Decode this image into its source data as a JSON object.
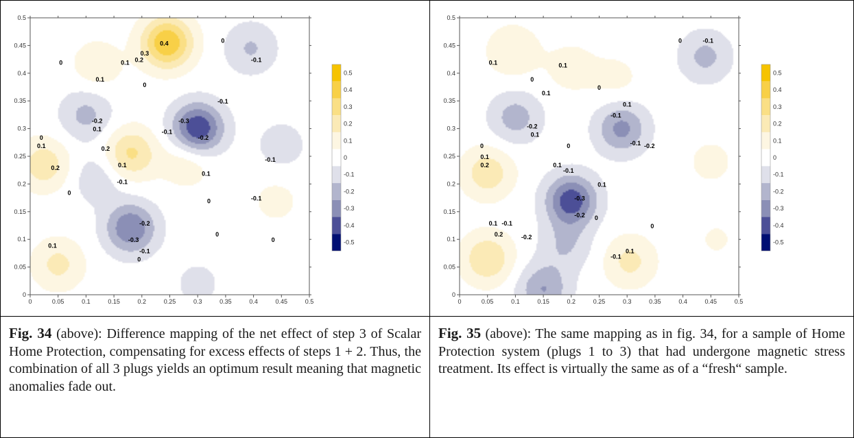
{
  "chart_data": [
    {
      "type": "heatmap",
      "subtype": "filled-contour",
      "x_ticks": [
        "0",
        "0.05",
        "0.1",
        "0.15",
        "0.2",
        "0.25",
        "0.3",
        "0.35",
        "0.4",
        "0.45",
        "0.5"
      ],
      "y_ticks": [
        "0",
        "0.05",
        "0.1",
        "0.15",
        "0.2",
        "0.25",
        "0.3",
        "0.35",
        "0.4",
        "0.45",
        "0.5"
      ],
      "xlim": [
        0,
        0.5
      ],
      "ylim": [
        0,
        0.5
      ],
      "levels": [
        -0.5,
        -0.4,
        -0.3,
        -0.2,
        -0.1,
        0,
        0.1,
        0.2,
        0.3,
        0.4,
        0.5
      ],
      "colorbar_labels": [
        "0.5",
        "0.4",
        "0.3",
        "0.2",
        "0.1",
        "0",
        "-0.1",
        "-0.2",
        "-0.3",
        "-0.4",
        "-0.5"
      ],
      "features": [
        {
          "x": 0.245,
          "y": 0.455,
          "value": 0.45
        },
        {
          "x": 0.12,
          "y": 0.415,
          "value": 0.12
        },
        {
          "x": 0.395,
          "y": 0.445,
          "value": -0.16
        },
        {
          "x": 0.1,
          "y": 0.325,
          "value": -0.18
        },
        {
          "x": 0.3,
          "y": 0.3,
          "value": -0.45
        },
        {
          "x": 0.18,
          "y": 0.255,
          "value": 0.27
        },
        {
          "x": 0.025,
          "y": 0.235,
          "value": 0.22
        },
        {
          "x": 0.28,
          "y": 0.24,
          "value": 0.13
        },
        {
          "x": 0.18,
          "y": 0.12,
          "value": -0.35
        },
        {
          "x": 0.12,
          "y": 0.21,
          "value": -0.12
        },
        {
          "x": 0.05,
          "y": 0.055,
          "value": 0.18
        },
        {
          "x": 0.44,
          "y": 0.17,
          "value": 0.08
        },
        {
          "x": 0.45,
          "y": 0.27,
          "value": -0.1
        },
        {
          "x": 0.3,
          "y": 0.02,
          "value": -0.08
        }
      ],
      "contour_labels": [
        {
          "x": 0.24,
          "y": 0.45,
          "text": "0.4"
        },
        {
          "x": 0.205,
          "y": 0.432,
          "text": "0.3"
        },
        {
          "x": 0.195,
          "y": 0.42,
          "text": "0.2"
        },
        {
          "x": 0.17,
          "y": 0.415,
          "text": "0.1"
        },
        {
          "x": 0.345,
          "y": 0.455,
          "text": "0"
        },
        {
          "x": 0.405,
          "y": 0.42,
          "text": "-0.1"
        },
        {
          "x": 0.205,
          "y": 0.375,
          "text": "0"
        },
        {
          "x": 0.125,
          "y": 0.385,
          "text": "0.1"
        },
        {
          "x": 0.055,
          "y": 0.415,
          "text": "0"
        },
        {
          "x": 0.345,
          "y": 0.345,
          "text": "-0.1"
        },
        {
          "x": 0.275,
          "y": 0.31,
          "text": "-0.3"
        },
        {
          "x": 0.245,
          "y": 0.29,
          "text": "-0.1"
        },
        {
          "x": 0.31,
          "y": 0.28,
          "text": "-0.2"
        },
        {
          "x": 0.12,
          "y": 0.31,
          "text": "-0.2"
        },
        {
          "x": 0.12,
          "y": 0.295,
          "text": "0.1"
        },
        {
          "x": 0.02,
          "y": 0.28,
          "text": "0"
        },
        {
          "x": 0.02,
          "y": 0.265,
          "text": "0.1"
        },
        {
          "x": 0.135,
          "y": 0.26,
          "text": "0.2"
        },
        {
          "x": 0.045,
          "y": 0.225,
          "text": "0.2"
        },
        {
          "x": 0.165,
          "y": 0.23,
          "text": "0.1"
        },
        {
          "x": 0.165,
          "y": 0.2,
          "text": "-0.1"
        },
        {
          "x": 0.07,
          "y": 0.18,
          "text": "0"
        },
        {
          "x": 0.315,
          "y": 0.215,
          "text": "0.1"
        },
        {
          "x": 0.32,
          "y": 0.165,
          "text": "0"
        },
        {
          "x": 0.43,
          "y": 0.24,
          "text": "-0.1"
        },
        {
          "x": 0.405,
          "y": 0.17,
          "text": "-0.1"
        },
        {
          "x": 0.205,
          "y": 0.125,
          "text": "-0.2"
        },
        {
          "x": 0.185,
          "y": 0.095,
          "text": "-0.3"
        },
        {
          "x": 0.04,
          "y": 0.085,
          "text": "0.1"
        },
        {
          "x": 0.205,
          "y": 0.075,
          "text": "-0.1"
        },
        {
          "x": 0.195,
          "y": 0.06,
          "text": "0"
        },
        {
          "x": 0.335,
          "y": 0.105,
          "text": "0"
        },
        {
          "x": 0.435,
          "y": 0.095,
          "text": "0"
        }
      ]
    },
    {
      "type": "heatmap",
      "subtype": "filled-contour",
      "x_ticks": [
        "0",
        "0.05",
        "0.1",
        "0.15",
        "0.2",
        "0.25",
        "0.3",
        "0.35",
        "0.4",
        "0.45",
        "0.5"
      ],
      "y_ticks": [
        "0",
        "0.05",
        "0.1",
        "0.15",
        "0.2",
        "0.25",
        "0.3",
        "0.35",
        "0.4",
        "0.45",
        "0.5"
      ],
      "xlim": [
        0,
        0.5
      ],
      "ylim": [
        0,
        0.5
      ],
      "levels": [
        -0.5,
        -0.4,
        -0.3,
        -0.2,
        -0.1,
        0,
        0.1,
        0.2,
        0.3,
        0.4,
        0.5
      ],
      "colorbar_labels": [
        "0.5",
        "0.4",
        "0.3",
        "0.2",
        "0.1",
        "0",
        "-0.1",
        "-0.2",
        "-0.3",
        "-0.4",
        "-0.5"
      ],
      "features": [
        {
          "x": 0.095,
          "y": 0.44,
          "value": 0.15
        },
        {
          "x": 0.2,
          "y": 0.41,
          "value": 0.1
        },
        {
          "x": 0.28,
          "y": 0.39,
          "value": 0.08
        },
        {
          "x": 0.44,
          "y": 0.43,
          "value": -0.18
        },
        {
          "x": 0.1,
          "y": 0.32,
          "value": -0.2
        },
        {
          "x": 0.29,
          "y": 0.3,
          "value": -0.28
        },
        {
          "x": 0.05,
          "y": 0.22,
          "value": 0.22
        },
        {
          "x": 0.45,
          "y": 0.24,
          "value": 0.08
        },
        {
          "x": 0.2,
          "y": 0.17,
          "value": -0.42
        },
        {
          "x": 0.19,
          "y": 0.09,
          "value": -0.15
        },
        {
          "x": 0.05,
          "y": 0.065,
          "value": 0.25
        },
        {
          "x": 0.305,
          "y": 0.06,
          "value": 0.18
        },
        {
          "x": 0.46,
          "y": 0.1,
          "value": 0.06
        },
        {
          "x": 0.15,
          "y": 0.01,
          "value": -0.25
        }
      ],
      "contour_labels": [
        {
          "x": 0.06,
          "y": 0.415,
          "text": "0.1"
        },
        {
          "x": 0.13,
          "y": 0.385,
          "text": "0"
        },
        {
          "x": 0.185,
          "y": 0.41,
          "text": "0.1"
        },
        {
          "x": 0.155,
          "y": 0.36,
          "text": "0.1"
        },
        {
          "x": 0.25,
          "y": 0.37,
          "text": "0"
        },
        {
          "x": 0.3,
          "y": 0.34,
          "text": "0.1"
        },
        {
          "x": 0.28,
          "y": 0.32,
          "text": "-0.1"
        },
        {
          "x": 0.445,
          "y": 0.455,
          "text": "-0.1"
        },
        {
          "x": 0.395,
          "y": 0.455,
          "text": "0"
        },
        {
          "x": 0.13,
          "y": 0.3,
          "text": "-0.2"
        },
        {
          "x": 0.135,
          "y": 0.285,
          "text": "0.1"
        },
        {
          "x": 0.04,
          "y": 0.265,
          "text": "0"
        },
        {
          "x": 0.045,
          "y": 0.245,
          "text": "0.1"
        },
        {
          "x": 0.045,
          "y": 0.23,
          "text": "0.2"
        },
        {
          "x": 0.34,
          "y": 0.265,
          "text": "-0.2"
        },
        {
          "x": 0.315,
          "y": 0.27,
          "text": "-0.1"
        },
        {
          "x": 0.195,
          "y": 0.265,
          "text": "0"
        },
        {
          "x": 0.175,
          "y": 0.23,
          "text": "0.1"
        },
        {
          "x": 0.195,
          "y": 0.22,
          "text": "-0.1"
        },
        {
          "x": 0.255,
          "y": 0.195,
          "text": "0.1"
        },
        {
          "x": 0.215,
          "y": 0.17,
          "text": "-0.3"
        },
        {
          "x": 0.215,
          "y": 0.14,
          "text": "-0.2"
        },
        {
          "x": 0.245,
          "y": 0.135,
          "text": "0"
        },
        {
          "x": 0.06,
          "y": 0.125,
          "text": "0.1"
        },
        {
          "x": 0.085,
          "y": 0.125,
          "text": "-0.1"
        },
        {
          "x": 0.07,
          "y": 0.105,
          "text": "0.2"
        },
        {
          "x": 0.12,
          "y": 0.1,
          "text": "-0.2"
        },
        {
          "x": 0.28,
          "y": 0.065,
          "text": "-0.1"
        },
        {
          "x": 0.305,
          "y": 0.075,
          "text": "0.1"
        },
        {
          "x": 0.345,
          "y": 0.12,
          "text": "0"
        }
      ]
    }
  ],
  "colorbar_colors": [
    "#f6c300",
    "#f8d047",
    "#fadf85",
    "#fbeab6",
    "#fdf6e2",
    "#ffffff",
    "#dfe0ea",
    "#b2b5cd",
    "#8b8fb6",
    "#4c4f97",
    "#000f73"
  ],
  "captions": {
    "fig34": {
      "label": "Fig. 34",
      "text": " (above):  Difference mapping of the net effect of step 3 of Scalar Home Protection, compensating for excess effects of steps 1 + 2. Thus, the combination of all 3 plugs yields an optimum result meaning that magnetic anomalies fade out."
    },
    "fig35": {
      "label": "Fig. 35",
      "text": " (above): The same mapping as in fig. 34, for a sample of Home Protection system (plugs 1 to 3) that had undergone magnetic stress treatment. Its effect is virtually the same as of a “fresh“ sample."
    }
  }
}
